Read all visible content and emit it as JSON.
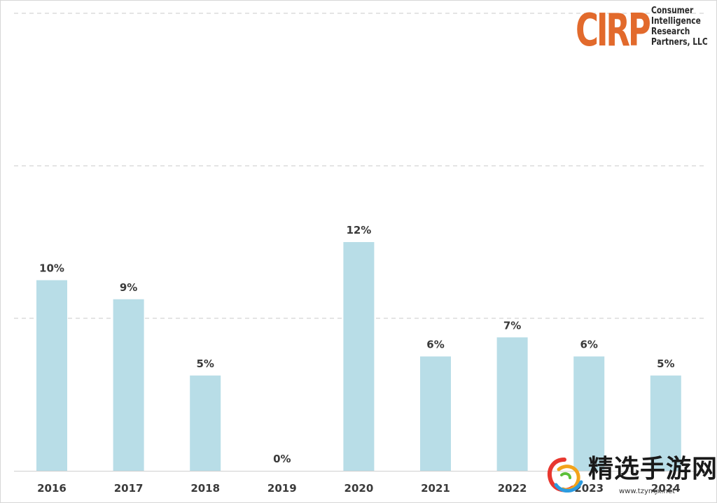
{
  "chart_data": {
    "type": "bar",
    "categories": [
      "2016",
      "2017",
      "2018",
      "2019",
      "2020",
      "2021",
      "2022",
      "2023",
      "2024"
    ],
    "values": [
      10,
      9,
      5,
      0,
      12,
      6,
      7,
      6,
      5
    ],
    "value_labels": [
      "10%",
      "9%",
      "5%",
      "0%",
      "12%",
      "6%",
      "7%",
      "6%",
      "5%"
    ],
    "xlabel": "",
    "ylabel": "",
    "ylim": [
      0,
      24
    ],
    "gridlines": [
      8,
      16,
      24
    ],
    "grid": true,
    "bar_color": "#b8dde7",
    "grid_color": "#c8c8c8"
  },
  "logo": {
    "mark": "CIRP",
    "lines": [
      "Consumer",
      "Intelligence",
      "Research",
      "Partners, LLC"
    ],
    "mark_color": "#e26a2c"
  },
  "watermark": {
    "title": "精选手游网",
    "url": "www.tzymjx.net"
  }
}
